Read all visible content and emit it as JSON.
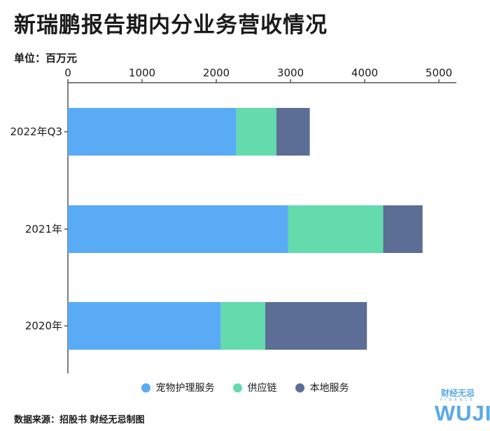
{
  "title": "新瑞鹏报告期内分业务营收情况",
  "unit_label": "单位：百万元",
  "source": "数据来源：招股书 财经无忌制图",
  "logo": {
    "top": "财经无忌",
    "finance": "FINANCE",
    "wuji": "WUJI"
  },
  "colors": {
    "pet_care": "#5aabf5",
    "supply_chain": "#63dbac",
    "local_services": "#5c6e96",
    "axis": "#555555"
  },
  "chart_data": {
    "type": "bar",
    "orientation": "horizontal",
    "stacked": true,
    "categories": [
      "2022年Q3",
      "2021年",
      "2020年"
    ],
    "series": [
      {
        "name": "宠物护理服务",
        "values": [
          2270,
          2970,
          2060
        ]
      },
      {
        "name": "供应链",
        "values": [
          540,
          1280,
          600
        ]
      },
      {
        "name": "本地服务",
        "values": [
          450,
          530,
          1370
        ]
      }
    ],
    "xlim": [
      0,
      5000
    ],
    "xticks": [
      0,
      1000,
      2000,
      3000,
      4000,
      5000
    ],
    "xlabel": "",
    "ylabel": "",
    "grid": false,
    "legend_position": "bottom"
  }
}
